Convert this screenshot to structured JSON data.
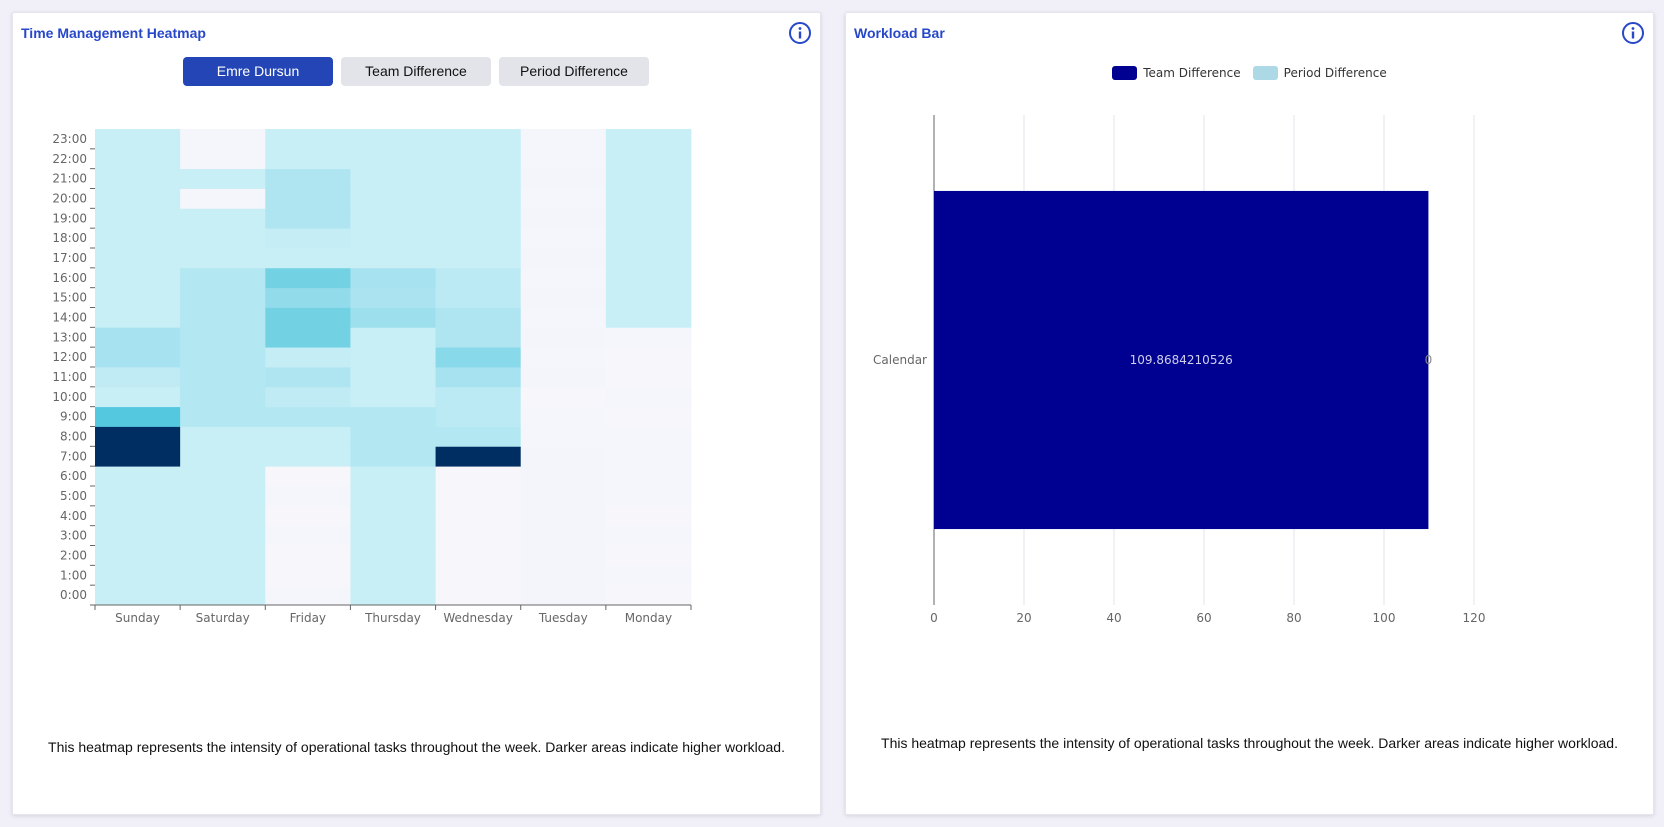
{
  "heatmap_panel": {
    "title": "Time Management Heatmap",
    "tabs": [
      {
        "label": "Emre Dursun",
        "active": true
      },
      {
        "label": "Team Difference",
        "active": false
      },
      {
        "label": "Period Difference",
        "active": false
      }
    ],
    "footnote": "This heatmap represents the intensity of operational tasks throughout the week. Darker areas indicate higher workload."
  },
  "bar_panel": {
    "title": "Workload Bar",
    "footnote": "This heatmap represents the intensity of operational tasks throughout the week. Darker areas indicate higher workload."
  },
  "icons": {
    "info": "info-circle-icon"
  },
  "colors": {
    "accent": "#2748c9",
    "active_tab": "#2345b5",
    "team_difference": "#000091",
    "period_difference": "#add8e6"
  },
  "chart_data": [
    {
      "type": "heatmap",
      "title": "",
      "x_categories": [
        "Sunday",
        "Saturday",
        "Friday",
        "Thursday",
        "Wednesday",
        "Tuesday",
        "Monday"
      ],
      "y_categories": [
        "0:00",
        "1:00",
        "2:00",
        "3:00",
        "4:00",
        "5:00",
        "6:00",
        "7:00",
        "8:00",
        "9:00",
        "10:00",
        "11:00",
        "12:00",
        "13:00",
        "14:00",
        "15:00",
        "16:00",
        "17:00",
        "18:00",
        "19:00",
        "20:00",
        "21:00",
        "22:00",
        "23:00"
      ],
      "values": [
        [
          1,
          1,
          0.05,
          1,
          0.03,
          0.08,
          0.03
        ],
        [
          1,
          1,
          0.03,
          1,
          0.03,
          0.08,
          0.05
        ],
        [
          1,
          1,
          0.03,
          1,
          0.03,
          0.08,
          0.03
        ],
        [
          1,
          1,
          0.05,
          1,
          0.03,
          0.08,
          0.05
        ],
        [
          1,
          1,
          0.03,
          1,
          0.03,
          0.08,
          0.03
        ],
        [
          1,
          1,
          0.05,
          1,
          0.03,
          0.08,
          0.05
        ],
        [
          1,
          1,
          0.03,
          1,
          0.03,
          0.08,
          0.05
        ],
        [
          10,
          1,
          1,
          1.5,
          10,
          0.08,
          0.05
        ],
        [
          10,
          1,
          1,
          1.5,
          1.5,
          0.05,
          0.05
        ],
        [
          4,
          1.5,
          1.5,
          1.5,
          1.3,
          0.05,
          0.03
        ],
        [
          1,
          1.5,
          1.2,
          1,
          1.3,
          0.03,
          0.05
        ],
        [
          1.2,
          1.5,
          1.6,
          1,
          1.8,
          0.08,
          0.03
        ],
        [
          1.8,
          1.5,
          1.1,
          1,
          2.5,
          0.05,
          0.03
        ],
        [
          1.8,
          1.5,
          3,
          1,
          1.6,
          0.08,
          0.05
        ],
        [
          1,
          1.5,
          3,
          2,
          1.6,
          0.05,
          1
        ],
        [
          1,
          1.5,
          2.3,
          1.7,
          1.3,
          0.08,
          1
        ],
        [
          1,
          1.5,
          3,
          1.8,
          1.3,
          0.05,
          1
        ],
        [
          1,
          1,
          1,
          1,
          1,
          0.08,
          1
        ],
        [
          1,
          1,
          1.1,
          1,
          1,
          0.05,
          1
        ],
        [
          1,
          1,
          1.6,
          1,
          1,
          0.08,
          1
        ],
        [
          1,
          0.05,
          1.6,
          1,
          1,
          0.05,
          1
        ],
        [
          1,
          1,
          1.6,
          1,
          1,
          0.08,
          1
        ],
        [
          1,
          0.05,
          1,
          1,
          1,
          0.05,
          1
        ],
        [
          1,
          0.05,
          1,
          1,
          1,
          0.05,
          1
        ]
      ]
    },
    {
      "type": "bar",
      "orientation": "horizontal",
      "title": "Workload Bar",
      "categories": [
        "Calendar"
      ],
      "series": [
        {
          "name": "Team Difference",
          "values": [
            109.8684210526
          ],
          "color": "#000091",
          "labels": [
            "109.8684210526"
          ]
        },
        {
          "name": "Period Difference",
          "values": [
            0
          ],
          "color": "#add8e6",
          "labels": [
            "0"
          ]
        }
      ],
      "xlim": [
        0,
        120
      ],
      "xticks": [
        0,
        20,
        40,
        60,
        80,
        100,
        120
      ],
      "legend": "top-center",
      "grid": true
    }
  ]
}
